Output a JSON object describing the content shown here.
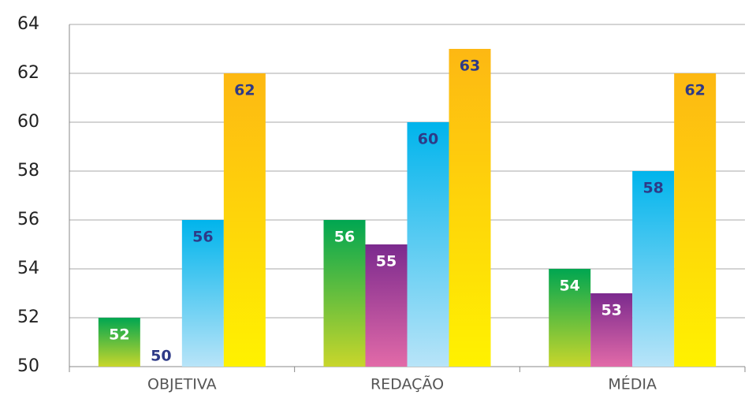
{
  "chart_data": {
    "type": "bar",
    "categories": [
      "OBJETIVA",
      "REDAÇÃO",
      "MÉDIA"
    ],
    "series": [
      {
        "color": [
          "#00a651",
          "#c8d62b"
        ],
        "label_color": "#ffffff",
        "values": [
          52,
          56,
          54
        ]
      },
      {
        "color": [
          "#7b2a8e",
          "#e26aa8"
        ],
        "label_color": "#ffffff",
        "values": [
          50,
          55,
          53
        ]
      },
      {
        "color": [
          "#00b4ec",
          "#b8e4f8"
        ],
        "label_color": "#2e3a87",
        "values": [
          56,
          60,
          58
        ]
      },
      {
        "color": [
          "#fdb813",
          "#fff200"
        ],
        "label_color": "#2e3a87",
        "values": [
          62,
          63,
          62
        ]
      }
    ],
    "ylim": [
      50,
      64
    ],
    "yticks": [
      50,
      52,
      54,
      56,
      58,
      60,
      62,
      64
    ],
    "grid": true
  }
}
